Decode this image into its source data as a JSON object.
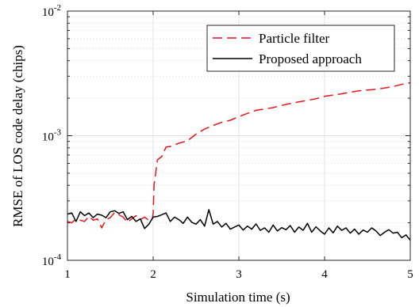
{
  "chart_data": {
    "type": "line",
    "xlabel": "Simulation time (s)",
    "ylabel": "RMSE of LOS code delay (chips)",
    "xlim": [
      1,
      5
    ],
    "ylim": [
      0.0001,
      0.01
    ],
    "yscale": "log",
    "grid": true,
    "legend_position": "top-right",
    "x_ticks": [
      {
        "value": 1,
        "label": "1"
      },
      {
        "value": 2,
        "label": "2"
      },
      {
        "value": 3,
        "label": "3"
      },
      {
        "value": 4,
        "label": "4"
      },
      {
        "value": 5,
        "label": "5"
      }
    ],
    "y_ticks": [
      {
        "value": 0.0001,
        "base": "10",
        "exp": "-4"
      },
      {
        "value": 0.001,
        "base": "10",
        "exp": "-3"
      },
      {
        "value": 0.01,
        "base": "10",
        "exp": "-2"
      }
    ],
    "series": [
      {
        "name": "Particle filter",
        "color": "#e8141a",
        "dash": "dashed",
        "x": [
          1.0,
          1.05,
          1.1,
          1.15,
          1.2,
          1.25,
          1.3,
          1.35,
          1.4,
          1.45,
          1.5,
          1.55,
          1.6,
          1.65,
          1.7,
          1.75,
          1.8,
          1.85,
          1.9,
          1.95,
          1.99,
          2.0,
          2.01,
          2.05,
          2.1,
          2.15,
          2.2,
          2.3,
          2.4,
          2.5,
          2.6,
          2.7,
          2.8,
          2.9,
          3.0,
          3.1,
          3.2,
          3.3,
          3.4,
          3.5,
          3.6,
          3.7,
          3.8,
          3.9,
          4.0,
          4.1,
          4.2,
          4.3,
          4.4,
          4.5,
          4.6,
          4.7,
          4.8,
          4.9,
          5.0
        ],
        "y": [
          0.000205,
          0.0002,
          0.000215,
          0.00021,
          0.000205,
          0.000225,
          0.00021,
          0.000215,
          0.000182,
          0.000212,
          0.00022,
          0.000242,
          0.000232,
          0.000222,
          0.000202,
          0.000215,
          0.000228,
          0.000212,
          0.000222,
          0.00021,
          0.000212,
          0.00024,
          0.0004,
          0.00064,
          0.00068,
          0.00081,
          0.00082,
          0.00087,
          0.00091,
          0.00103,
          0.00113,
          0.00121,
          0.00128,
          0.00133,
          0.00142,
          0.00151,
          0.0016,
          0.00164,
          0.00168,
          0.00175,
          0.00181,
          0.00187,
          0.00192,
          0.00198,
          0.00207,
          0.00212,
          0.00217,
          0.00223,
          0.00229,
          0.00232,
          0.00236,
          0.00241,
          0.00248,
          0.00258,
          0.00266
        ]
      },
      {
        "name": "Proposed approach",
        "color": "#000000",
        "dash": "solid",
        "x": [
          1.0,
          1.05,
          1.1,
          1.15,
          1.2,
          1.25,
          1.3,
          1.35,
          1.4,
          1.45,
          1.5,
          1.55,
          1.6,
          1.65,
          1.7,
          1.75,
          1.8,
          1.85,
          1.9,
          1.95,
          2.0,
          2.05,
          2.1,
          2.15,
          2.2,
          2.25,
          2.3,
          2.35,
          2.4,
          2.45,
          2.5,
          2.55,
          2.6,
          2.65,
          2.7,
          2.75,
          2.8,
          2.85,
          2.9,
          2.95,
          3.0,
          3.05,
          3.1,
          3.15,
          3.2,
          3.25,
          3.3,
          3.35,
          3.4,
          3.45,
          3.5,
          3.55,
          3.6,
          3.65,
          3.7,
          3.75,
          3.8,
          3.85,
          3.9,
          3.95,
          4.0,
          4.05,
          4.1,
          4.15,
          4.2,
          4.25,
          4.3,
          4.35,
          4.4,
          4.45,
          4.5,
          4.55,
          4.6,
          4.65,
          4.7,
          4.75,
          4.8,
          4.85,
          4.9,
          4.95,
          5.0
        ],
        "y": [
          0.000235,
          0.00024,
          0.000205,
          0.000245,
          0.000228,
          0.00024,
          0.00022,
          0.000235,
          0.00023,
          0.00022,
          0.000245,
          0.00025,
          0.000238,
          0.000245,
          0.000212,
          0.000225,
          0.000205,
          0.000215,
          0.00018,
          0.000195,
          0.000222,
          0.000225,
          0.000232,
          0.00024,
          0.000205,
          0.000222,
          0.000212,
          0.000198,
          0.000222,
          0.000202,
          0.000195,
          0.000212,
          0.000188,
          0.000255,
          0.000195,
          0.000205,
          0.000185,
          0.000198,
          0.000178,
          0.000185,
          0.000192,
          0.000175,
          0.000188,
          0.000178,
          0.000196,
          0.000174,
          0.000182,
          0.000168,
          0.000192,
          0.000172,
          0.000183,
          0.000176,
          0.00019,
          0.000168,
          0.000185,
          0.000174,
          0.000198,
          0.000168,
          0.000186,
          0.000172,
          0.000162,
          0.000182,
          0.000166,
          0.000188,
          0.000174,
          0.000182,
          0.000165,
          0.000178,
          0.000162,
          0.000175,
          0.000168,
          0.000182,
          0.000172,
          0.000158,
          0.000168,
          0.000176,
          0.000165,
          0.000168,
          0.000152,
          0.00016,
          0.000145
        ]
      }
    ]
  }
}
